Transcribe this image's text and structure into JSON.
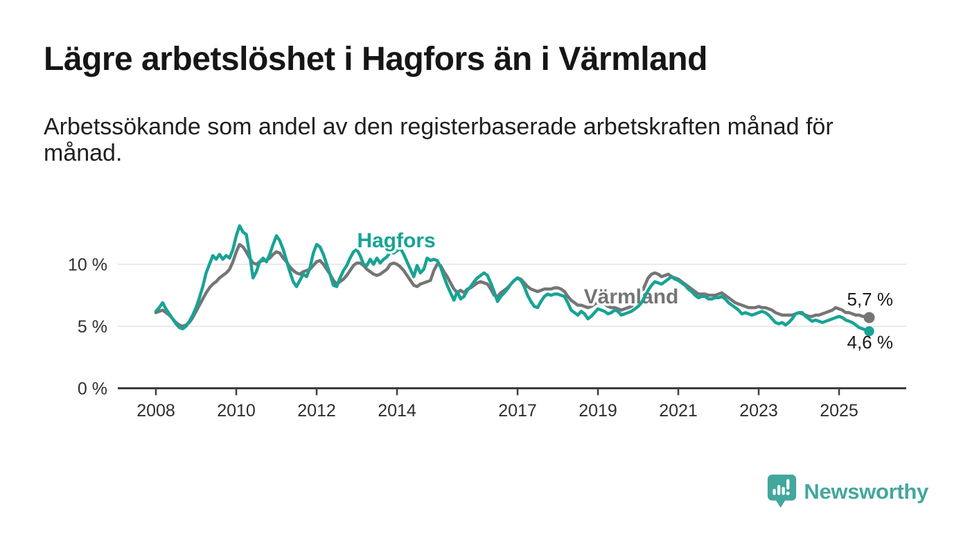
{
  "header": {
    "title": "Lägre arbetslöshet i Hagfors än i Värmland",
    "subtitle": "Arbetssökande som andel av den registerbaserade arbetskraften månad för månad.",
    "subtitle_lines": [
      "Arbetssökande som andel av den registerbaserade arbetskraften månad för",
      "månad."
    ]
  },
  "chart_data": {
    "type": "line",
    "unit": "%",
    "x_range": [
      2008.0,
      2025.75
    ],
    "y_range": [
      0,
      14
    ],
    "grid": "horizontal-only",
    "legend": "inline-labels",
    "x_axis": {
      "ticks": [
        {
          "value": 2008,
          "label": "2008"
        },
        {
          "value": 2010,
          "label": "2010"
        },
        {
          "value": 2012,
          "label": "2012"
        },
        {
          "value": 2014,
          "label": "2014"
        },
        {
          "value": 2017,
          "label": "2017"
        },
        {
          "value": 2019,
          "label": "2019"
        },
        {
          "value": 2021,
          "label": "2021"
        },
        {
          "value": 2023,
          "label": "2023"
        },
        {
          "value": 2025,
          "label": "2025"
        }
      ]
    },
    "y_axis": {
      "ticks": [
        {
          "value": 0,
          "label": "0 %"
        },
        {
          "value": 5,
          "label": "5 %"
        },
        {
          "value": 10,
          "label": "10 %"
        }
      ],
      "gridlines": [
        5,
        10
      ]
    },
    "style": {
      "grid_color": "#e2e2e2",
      "axis_color": "#3d3d3d",
      "tick_text_color": "#2f2f2f",
      "value_label_color": "#1a1a1a"
    },
    "series": [
      {
        "name": "Värmland",
        "color": "#757575",
        "end_label": "5,7 %",
        "last_value": 5.7,
        "start_year": 2008,
        "points_per_year": 12,
        "values": [
          6.1,
          6.2,
          6.3,
          6.1,
          5.9,
          5.6,
          5.3,
          5.1,
          5.0,
          5.1,
          5.3,
          5.7,
          6.2,
          6.7,
          7.2,
          7.7,
          8.1,
          8.4,
          8.6,
          8.9,
          9.1,
          9.3,
          9.6,
          10.2,
          11.0,
          11.6,
          11.4,
          11.0,
          10.5,
          10.1,
          10.0,
          10.2,
          10.3,
          10.3,
          10.5,
          10.8,
          11.0,
          10.9,
          10.5,
          10.2,
          9.8,
          9.5,
          9.3,
          9.2,
          9.4,
          9.5,
          9.6,
          9.9,
          10.2,
          10.3,
          10.0,
          9.6,
          9.2,
          8.7,
          8.4,
          8.6,
          8.8,
          9.1,
          9.5,
          9.9,
          10.1,
          10.1,
          9.9,
          9.6,
          9.4,
          9.2,
          9.1,
          9.2,
          9.4,
          9.6,
          10.0,
          10.1,
          10.0,
          9.8,
          9.5,
          9.1,
          8.7,
          8.3,
          8.2,
          8.4,
          8.5,
          8.6,
          8.7,
          9.5,
          10.0,
          9.9,
          9.4,
          9.0,
          8.5,
          8.0,
          7.7,
          7.9,
          7.7,
          8.0,
          8.1,
          8.3,
          8.5,
          8.6,
          8.5,
          8.4,
          8.0,
          7.5,
          7.4,
          7.7,
          7.9,
          8.1,
          8.4,
          8.7,
          8.9,
          8.8,
          8.5,
          8.2,
          8.0,
          7.9,
          7.8,
          7.9,
          8.0,
          8.0,
          8.0,
          8.1,
          8.1,
          8.0,
          7.8,
          7.4,
          7.1,
          6.9,
          6.7,
          6.7,
          6.6,
          6.5,
          6.6,
          6.8,
          6.9,
          6.9,
          6.8,
          6.6,
          6.5,
          6.5,
          6.4,
          6.3,
          6.4,
          6.5,
          6.6,
          6.9,
          7.2,
          7.6,
          8.3,
          8.9,
          9.2,
          9.3,
          9.2,
          9.0,
          9.1,
          9.2,
          9.0,
          8.9,
          8.8,
          8.6,
          8.4,
          8.2,
          8.0,
          7.8,
          7.6,
          7.6,
          7.6,
          7.5,
          7.5,
          7.5,
          7.6,
          7.7,
          7.5,
          7.3,
          7.1,
          6.9,
          6.8,
          6.7,
          6.6,
          6.5,
          6.5,
          6.5,
          6.6,
          6.5,
          6.5,
          6.4,
          6.3,
          6.1,
          6.0,
          5.9,
          5.9,
          5.9,
          5.9,
          6.0,
          6.1,
          6.0,
          5.9,
          5.8,
          5.8,
          5.9,
          5.9,
          6.0,
          6.1,
          6.2,
          6.3,
          6.5,
          6.4,
          6.3,
          6.1,
          6.1,
          6.0,
          5.9,
          5.9,
          5.8,
          5.8,
          5.7
        ]
      },
      {
        "name": "Hagfors",
        "color": "#18a395",
        "end_label": "4,6 %",
        "last_value": 4.6,
        "start_year": 2008,
        "points_per_year": 12,
        "values": [
          6.2,
          6.5,
          6.9,
          6.4,
          6.0,
          5.6,
          5.2,
          4.9,
          4.8,
          5.0,
          5.4,
          5.9,
          6.5,
          7.3,
          8.2,
          9.3,
          10.0,
          10.7,
          10.4,
          10.8,
          10.4,
          10.7,
          10.5,
          11.2,
          12.3,
          13.1,
          12.6,
          12.4,
          10.8,
          8.9,
          9.4,
          10.2,
          10.5,
          10.2,
          10.8,
          11.6,
          12.3,
          11.9,
          11.2,
          10.3,
          9.4,
          8.6,
          8.2,
          8.7,
          9.2,
          9.0,
          9.7,
          10.9,
          11.6,
          11.4,
          10.8,
          10.0,
          9.2,
          8.3,
          8.2,
          8.9,
          9.5,
          9.9,
          10.5,
          11.0,
          11.2,
          10.7,
          10.0,
          9.9,
          10.4,
          10.0,
          10.5,
          10.1,
          10.4,
          10.6,
          11.0,
          10.9,
          11.1,
          11.3,
          10.8,
          10.2,
          9.6,
          9.0,
          9.9,
          9.3,
          9.6,
          10.5,
          10.3,
          10.4,
          10.3,
          9.8,
          9.0,
          8.3,
          7.7,
          7.1,
          7.8,
          7.2,
          7.4,
          7.9,
          8.2,
          8.6,
          8.9,
          9.1,
          9.3,
          9.1,
          8.5,
          7.8,
          7.0,
          7.4,
          7.7,
          8.0,
          8.4,
          8.7,
          8.9,
          8.7,
          8.2,
          7.5,
          7.0,
          6.6,
          6.5,
          7.0,
          7.4,
          7.6,
          7.5,
          7.6,
          7.6,
          7.5,
          7.4,
          6.9,
          6.3,
          6.1,
          5.9,
          6.2,
          6.0,
          5.6,
          5.8,
          6.1,
          6.4,
          6.3,
          6.2,
          6.0,
          6.1,
          6.3,
          6.2,
          5.9,
          6.0,
          6.1,
          6.2,
          6.4,
          6.6,
          6.9,
          7.4,
          7.9,
          8.3,
          8.6,
          8.5,
          8.4,
          8.6,
          8.8,
          9.0,
          8.8,
          8.7,
          8.5,
          8.3,
          8.0,
          7.8,
          7.5,
          7.3,
          7.4,
          7.4,
          7.2,
          7.2,
          7.3,
          7.3,
          7.4,
          7.2,
          6.9,
          6.7,
          6.5,
          6.3,
          6.0,
          6.1,
          6.0,
          5.9,
          6.0,
          6.1,
          6.2,
          6.1,
          5.9,
          5.6,
          5.3,
          5.2,
          5.3,
          5.1,
          5.3,
          5.6,
          6.0,
          6.1,
          6.1,
          5.8,
          5.6,
          5.4,
          5.5,
          5.4,
          5.3,
          5.4,
          5.5,
          5.6,
          5.7,
          5.8,
          5.7,
          5.5,
          5.4,
          5.3,
          5.1,
          4.9,
          4.8,
          4.7,
          4.6
        ]
      }
    ]
  },
  "footer": {
    "logo_text": "Newsworthy",
    "logo_color": "#43a79e"
  }
}
